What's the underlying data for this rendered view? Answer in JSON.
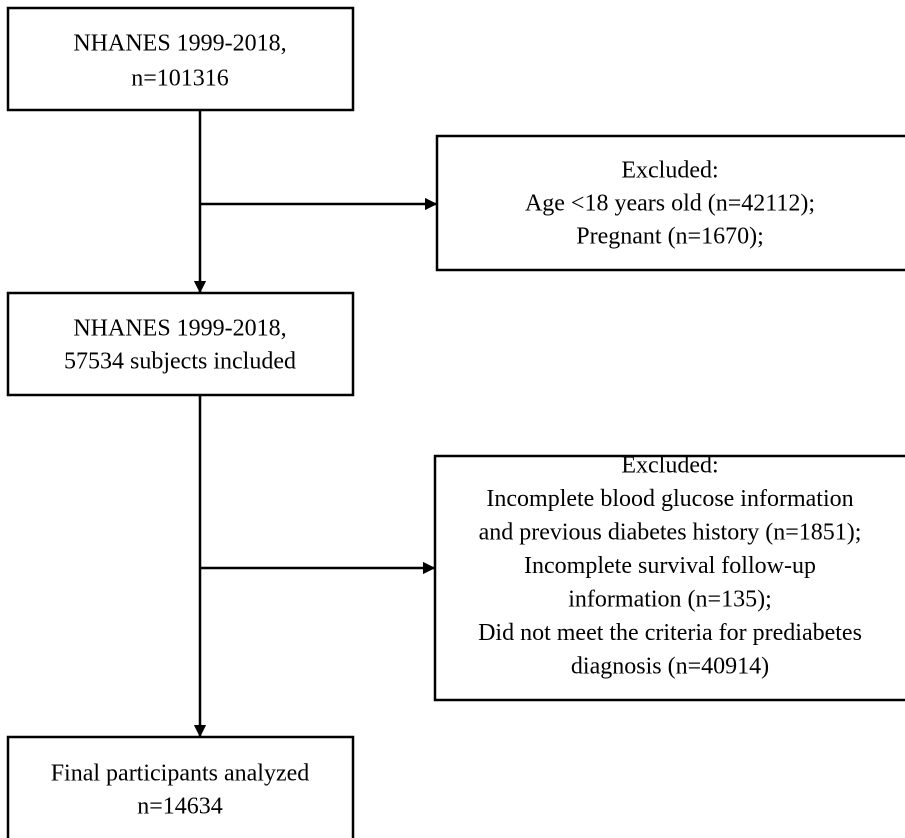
{
  "nodes": [
    {
      "lines": [
        "NHANES 1999-2018,",
        "n=101316"
      ]
    },
    {
      "lines": [
        "Excluded:",
        "Age <18 years old (n=42112);",
        "Pregnant (n=1670);"
      ]
    },
    {
      "lines": [
        "NHANES 1999-2018,",
        "57534 subjects included"
      ]
    },
    {
      "lines": [
        "Excluded:",
        "Incomplete blood glucose information",
        "and previous diabetes history (n=1851);",
        "Incomplete survival follow-up",
        "information (n=135);",
        "Did not meet the criteria for prediabetes",
        "diagnosis (n=40914)"
      ]
    },
    {
      "lines": [
        "Final participants analyzed",
        "n=14634"
      ]
    }
  ]
}
